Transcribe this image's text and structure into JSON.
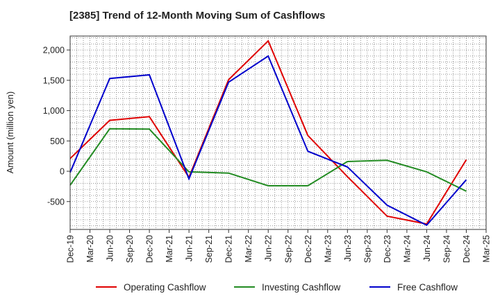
{
  "chart_data": {
    "type": "line",
    "title": "[2385]  Trend of 12-Month Moving Sum of Cashflows",
    "ylabel": "Amount (million yen)",
    "xlabel": "",
    "categories": [
      "Dec-19",
      "Mar-20",
      "Jun-20",
      "Sep-20",
      "Dec-20",
      "Mar-21",
      "Jun-21",
      "Sep-21",
      "Dec-21",
      "Mar-22",
      "Jun-22",
      "Sep-22",
      "Dec-22",
      "Mar-23",
      "Jun-23",
      "Sep-23",
      "Dec-23",
      "Mar-24",
      "Jun-24",
      "Sep-24",
      "Dec-24",
      "Mar-25"
    ],
    "ylim": [
      -960,
      2230
    ],
    "yticks": [
      2000,
      1500,
      1000,
      500,
      0,
      -500
    ],
    "ytick_labels": [
      "2,000",
      "1,500",
      "1,000",
      "500",
      "0",
      "-500"
    ],
    "grid": true,
    "legend_position": "bottom",
    "series": [
      {
        "name": "Operating Cashflow",
        "color": "#e00000",
        "values": [
          210,
          null,
          840,
          null,
          900,
          null,
          -100,
          null,
          1510,
          null,
          2150,
          null,
          590,
          null,
          -90,
          null,
          -740,
          null,
          -870,
          null,
          190,
          null
        ]
      },
      {
        "name": "Investing Cashflow",
        "color": "#228b22",
        "values": [
          -230,
          null,
          700,
          null,
          695,
          null,
          -10,
          null,
          -30,
          null,
          -240,
          null,
          -240,
          null,
          160,
          null,
          180,
          null,
          -10,
          null,
          -330,
          null
        ]
      },
      {
        "name": "Free Cashflow",
        "color": "#0000cc",
        "values": [
          -20,
          null,
          1530,
          null,
          1590,
          null,
          -125,
          null,
          1470,
          null,
          1900,
          null,
          330,
          null,
          70,
          null,
          -560,
          null,
          -890,
          null,
          -140,
          null
        ]
      }
    ]
  }
}
